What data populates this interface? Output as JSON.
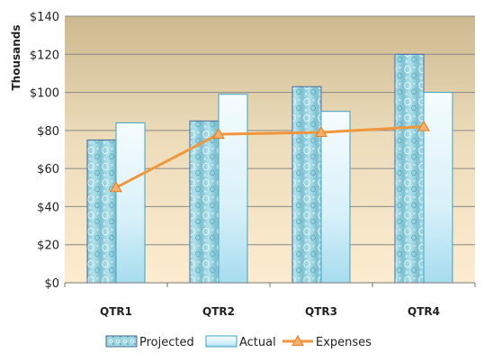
{
  "chart_data": {
    "type": "bar",
    "ylabel": "Thousands",
    "ylim": [
      0,
      140
    ],
    "yticks": [
      "$0",
      "$20",
      "$40",
      "$60",
      "$80",
      "$100",
      "$120",
      "$140"
    ],
    "ytick_values": [
      0,
      20,
      40,
      60,
      80,
      100,
      120,
      140
    ],
    "categories": [
      "QTR1",
      "QTR2",
      "QTR3",
      "QTR4"
    ],
    "series": [
      {
        "name": "Projected",
        "type": "bar",
        "values": [
          75,
          85,
          103,
          120
        ]
      },
      {
        "name": "Actual",
        "type": "bar",
        "values": [
          84,
          99,
          90,
          100
        ]
      },
      {
        "name": "Expenses",
        "type": "line",
        "values": [
          50,
          78,
          79,
          82
        ]
      }
    ],
    "grid": true,
    "legend_position": "bottom",
    "colors": {
      "projected": "#8fd0dc",
      "actual": "#e8f6fb",
      "expenses": "#f0963c",
      "plot_top": "#ccb98f",
      "plot_bottom": "#fbe9cd"
    }
  }
}
